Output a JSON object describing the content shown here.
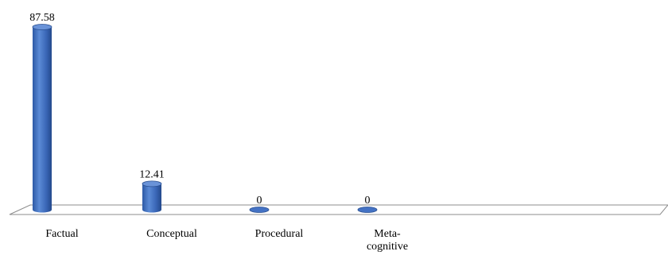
{
  "chart_data": {
    "type": "bar",
    "categories": [
      "Factual",
      "Conceptual",
      "Procedural",
      "Meta-cognitive"
    ],
    "category_lines": [
      [
        "Factual"
      ],
      [
        "Conceptual"
      ],
      [
        "Procedural"
      ],
      [
        "Meta-",
        "cognitive"
      ]
    ],
    "values": [
      87.58,
      12.41,
      0,
      0
    ],
    "value_labels": [
      "87.58",
      "12.41",
      "0",
      "0"
    ],
    "ylim": [
      0,
      87.58
    ],
    "grid": false,
    "legend": "none",
    "bar_style": "3d-cylinder",
    "colors": {
      "bar": "#4472c4",
      "bar_dark": "#2a4f8f",
      "bar_top": "#6a93d8",
      "floor_stroke": "#808080"
    }
  }
}
